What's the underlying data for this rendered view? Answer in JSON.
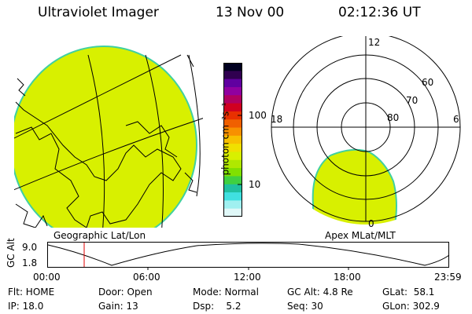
{
  "header": {
    "title": "Ultraviolet Imager",
    "date": "13 Nov 00",
    "time": "02:12:36 UT"
  },
  "colorbar": {
    "unit_label": "photon cm⁻²s⁻¹",
    "ticks": [
      "100",
      "10"
    ],
    "colors": [
      "#000020",
      "#300050",
      "#6000a0",
      "#9000a0",
      "#b00060",
      "#d00020",
      "#e83000",
      "#f06000",
      "#f89000",
      "#f8c000",
      "#f0e000",
      "#d8f000",
      "#b0e800",
      "#80e000",
      "#40d040",
      "#20c0a0",
      "#40e0e0",
      "#a0f0f0",
      "#e0f8f8"
    ]
  },
  "left_panel": {
    "label": "Geographic Lat/Lon",
    "fill_color": "#d8f000"
  },
  "right_panel": {
    "label": "Apex MLat/MLT",
    "mlt_labels": {
      "top": "12",
      "left": "18",
      "right": "6",
      "bottom": "0"
    },
    "lat_labels": [
      "60",
      "70",
      "80"
    ]
  },
  "timeline": {
    "y_label": "GC Alt",
    "y_ticks": [
      "9.0",
      "1.8"
    ],
    "x_ticks": [
      "00:00",
      "06:00",
      "12:00",
      "18:00",
      "23:59"
    ],
    "marker_color": "#e00000"
  },
  "status": {
    "flt": "Flt: HOME",
    "ip": "IP: 18.0",
    "door": "Door: Open",
    "gain": "Gain: 13",
    "mode": "Mode: Normal",
    "dsp": "Dsp:    5.2",
    "gcalt": "GC Alt: 4.8 Re",
    "seq": "Seq: 30",
    "glat": "GLat:  58.1",
    "glon": "GLon: 302.9"
  }
}
